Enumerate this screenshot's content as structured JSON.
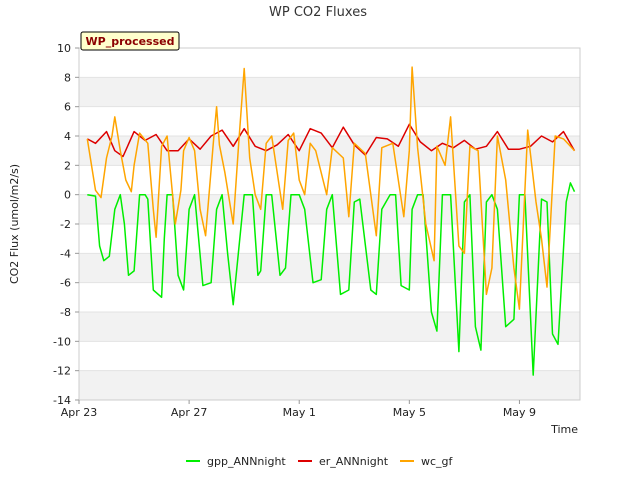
{
  "chart_data": {
    "type": "line",
    "title": "WP CO2 Fluxes",
    "badge": "WP_processed",
    "xlabel": "Time",
    "ylabel": "CO2 Flux (umol/m2/s)",
    "ylim": [
      -14,
      10
    ],
    "yticks": [
      -14,
      -12,
      -10,
      -8,
      -6,
      -4,
      -2,
      0,
      2,
      4,
      6,
      8,
      10
    ],
    "xlim_days": [
      0,
      18.2
    ],
    "xticks": [
      {
        "day": 0,
        "label": "Apr 23"
      },
      {
        "day": 4,
        "label": "Apr 27"
      },
      {
        "day": 8,
        "label": "May 1"
      },
      {
        "day": 12,
        "label": "May 5"
      },
      {
        "day": 16,
        "label": "May 9"
      }
    ],
    "x_units": "days since Apr 23 00:00",
    "series": [
      {
        "name": "gpp_ANNnight",
        "color": "#00ee00",
        "x": [
          0.3,
          0.6,
          0.75,
          0.9,
          1.1,
          1.3,
          1.5,
          1.65,
          1.8,
          2.0,
          2.2,
          2.4,
          2.5,
          2.7,
          3.0,
          3.1,
          3.2,
          3.4,
          3.6,
          3.8,
          4.0,
          4.2,
          4.5,
          4.8,
          5.0,
          5.2,
          5.4,
          5.6,
          6.0,
          6.3,
          6.5,
          6.6,
          6.8,
          7.0,
          7.3,
          7.5,
          7.7,
          8.0,
          8.2,
          8.5,
          8.8,
          9.0,
          9.2,
          9.5,
          9.8,
          10.0,
          10.2,
          10.6,
          10.8,
          11.0,
          11.3,
          11.5,
          11.7,
          12.0,
          12.1,
          12.3,
          12.5,
          12.8,
          13.0,
          13.2,
          13.5,
          13.8,
          14.0,
          14.2,
          14.4,
          14.6,
          14.8,
          15.0,
          15.2,
          15.5,
          15.8,
          16.0,
          16.2,
          16.5,
          16.8,
          17.0,
          17.2,
          17.4,
          17.7,
          17.85,
          18.0
        ],
        "y": [
          0,
          -0.1,
          -3.5,
          -4.5,
          -4.2,
          -1,
          0,
          -2,
          -5.5,
          -5.2,
          0,
          0,
          -0.3,
          -6.5,
          -7,
          -3,
          0,
          0,
          -5.5,
          -6.5,
          -1,
          0,
          -6.2,
          -6,
          -1,
          0,
          -4,
          -7.5,
          0,
          0,
          -5.5,
          -5.2,
          0,
          0,
          -5.5,
          -5,
          0,
          0,
          -1,
          -6,
          -5.8,
          -1,
          0,
          -6.8,
          -6.5,
          -0.5,
          -0.3,
          -6.5,
          -6.8,
          -1,
          0,
          0,
          -6.2,
          -6.5,
          -1,
          0,
          0,
          -8,
          -9.3,
          0,
          0,
          -10.7,
          -0.5,
          0,
          -9,
          -10.6,
          -0.5,
          0,
          -1,
          -9,
          -8.5,
          0,
          0,
          -12.3,
          -0.3,
          -0.5,
          -9.5,
          -10.2,
          -0.5,
          0.8,
          0.2
        ]
      },
      {
        "name": "er_ANNnight",
        "color": "#dd0000",
        "x": [
          0.3,
          0.6,
          1.0,
          1.3,
          1.6,
          2.0,
          2.4,
          2.8,
          3.2,
          3.6,
          4.0,
          4.4,
          4.8,
          5.2,
          5.6,
          6.0,
          6.4,
          6.8,
          7.2,
          7.6,
          8.0,
          8.4,
          8.8,
          9.2,
          9.6,
          10.0,
          10.4,
          10.8,
          11.2,
          11.6,
          12.0,
          12.4,
          12.8,
          13.2,
          13.6,
          14.0,
          14.4,
          14.8,
          15.2,
          15.6,
          16.0,
          16.4,
          16.8,
          17.2,
          17.6,
          18.0
        ],
        "y": [
          3.8,
          3.5,
          4.3,
          3.0,
          2.6,
          4.3,
          3.7,
          4.1,
          3.0,
          3.0,
          3.8,
          3.1,
          4.0,
          4.4,
          3.3,
          4.5,
          3.3,
          3.0,
          3.4,
          4.1,
          3.0,
          4.5,
          4.2,
          3.2,
          4.6,
          3.4,
          2.7,
          3.9,
          3.8,
          3.3,
          4.8,
          3.6,
          3.0,
          3.5,
          3.2,
          3.7,
          3.1,
          3.3,
          4.3,
          3.1,
          3.1,
          3.3,
          4.0,
          3.6,
          4.3,
          3.0
        ]
      },
      {
        "name": "wc_gf",
        "color": "#ffa500",
        "x": [
          0.3,
          0.6,
          0.8,
          1.0,
          1.2,
          1.3,
          1.5,
          1.7,
          1.9,
          2.0,
          2.2,
          2.5,
          2.7,
          2.8,
          3.0,
          3.2,
          3.3,
          3.5,
          3.7,
          3.8,
          4.0,
          4.2,
          4.4,
          4.6,
          4.9,
          5.0,
          5.1,
          5.3,
          5.6,
          5.8,
          6.0,
          6.2,
          6.4,
          6.6,
          6.8,
          7.0,
          7.2,
          7.4,
          7.6,
          7.8,
          8.0,
          8.2,
          8.4,
          8.6,
          9.0,
          9.2,
          9.6,
          9.8,
          10.0,
          10.4,
          10.8,
          11.0,
          11.4,
          11.8,
          12.0,
          12.1,
          12.3,
          12.6,
          12.9,
          13.0,
          13.3,
          13.5,
          13.8,
          14.0,
          14.2,
          14.5,
          14.8,
          15.0,
          15.2,
          15.5,
          15.8,
          16.0,
          16.3,
          16.6,
          16.8,
          17.0,
          17.3,
          17.6,
          17.8,
          18.0
        ],
        "y": [
          3.8,
          0.3,
          -0.2,
          2.5,
          4.0,
          5.3,
          3.0,
          1.0,
          0.2,
          2.0,
          4.2,
          3.5,
          -1.0,
          -2.9,
          3.3,
          4.0,
          2.0,
          -2.0,
          0.3,
          3.0,
          3.9,
          3.0,
          -1.0,
          -2.8,
          4.0,
          6.0,
          3.4,
          1.5,
          -2.0,
          3.5,
          8.6,
          2.5,
          0.0,
          -1.0,
          3.5,
          4.0,
          1.5,
          -1.0,
          3.7,
          4.2,
          1.0,
          0.0,
          3.5,
          3.0,
          0.0,
          3.2,
          2.5,
          -1.5,
          3.5,
          2.8,
          -2.8,
          3.2,
          3.5,
          -1.5,
          3.0,
          8.7,
          3.2,
          -2.0,
          -4.5,
          3.3,
          2.0,
          5.3,
          -3.5,
          -4.0,
          3.3,
          3.0,
          -6.8,
          -5.0,
          4.0,
          1.0,
          -5.0,
          -7.8,
          4.4,
          -0.5,
          -3.0,
          -6.3,
          4.0,
          3.8,
          3.4,
          3.0
        ]
      }
    ]
  },
  "legend": [
    {
      "label": "gpp_ANNnight",
      "color": "#00ee00"
    },
    {
      "label": "er_ANNnight",
      "color": "#dd0000"
    },
    {
      "label": "wc_gf",
      "color": "#ffa500"
    }
  ]
}
